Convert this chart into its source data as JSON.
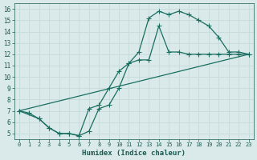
{
  "xlabel": "Humidex (Indice chaleur)",
  "xlim": [
    -0.5,
    23.5
  ],
  "ylim": [
    4.5,
    16.5
  ],
  "xticks": [
    0,
    1,
    2,
    3,
    4,
    5,
    6,
    7,
    8,
    9,
    10,
    11,
    12,
    13,
    14,
    15,
    16,
    17,
    18,
    19,
    20,
    21,
    22,
    23
  ],
  "yticks": [
    5,
    6,
    7,
    8,
    9,
    10,
    11,
    12,
    13,
    14,
    15,
    16
  ],
  "bg_color": "#daeaea",
  "grid_color": "#c8dcdc",
  "line_color": "#1a6e60",
  "line1_x": [
    0,
    1,
    2,
    3,
    4,
    5,
    6,
    7,
    8,
    9,
    10,
    11,
    12,
    13,
    14,
    15,
    16,
    17,
    18,
    19,
    20,
    21,
    22,
    23
  ],
  "line1_y": [
    7.0,
    6.8,
    6.3,
    5.5,
    5.0,
    5.0,
    4.8,
    5.2,
    7.2,
    7.5,
    9.0,
    11.2,
    12.2,
    15.2,
    15.8,
    15.5,
    15.8,
    15.5,
    15.0,
    14.5,
    13.5,
    12.2,
    12.2,
    12.0
  ],
  "line2_x": [
    0,
    2,
    3,
    4,
    5,
    6,
    7,
    8,
    9,
    10,
    11,
    12,
    13,
    14,
    15,
    16,
    17,
    18,
    19,
    20,
    21,
    22,
    23
  ],
  "line2_y": [
    7.0,
    6.3,
    5.5,
    5.0,
    5.0,
    4.8,
    7.2,
    7.5,
    9.0,
    10.5,
    11.2,
    11.5,
    11.5,
    14.5,
    12.2,
    12.2,
    12.0,
    12.0,
    12.0,
    12.0,
    12.0,
    12.0,
    12.0
  ],
  "line3_x": [
    0,
    23
  ],
  "line3_y": [
    7.0,
    12.0
  ]
}
